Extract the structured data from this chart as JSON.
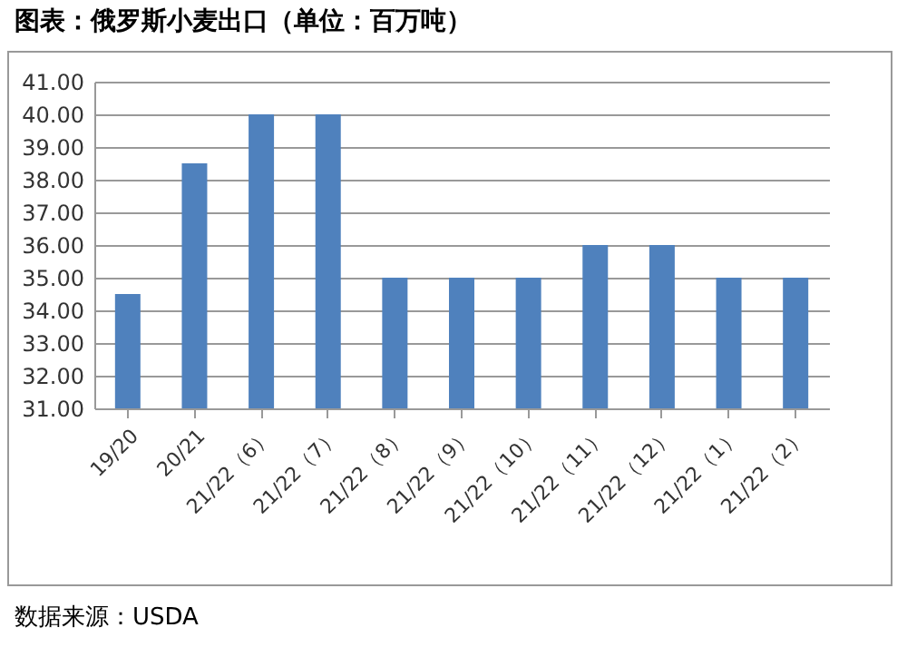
{
  "chart_data": {
    "type": "bar",
    "title": "图表：俄罗斯小麦出口（单位：百万吨）",
    "categories": [
      "19/20",
      "20/21",
      "21/22（6）",
      "21/22（7）",
      "21/22（8）",
      "21/22（9）",
      "21/22（10）",
      "21/22（11）",
      "21/22（12）",
      "21/22（1）",
      "21/22（2）"
    ],
    "values": [
      34.5,
      38.5,
      40,
      40,
      35,
      35,
      35,
      36,
      36,
      35,
      35
    ],
    "color": "#4f81bd",
    "ylim": [
      31,
      41
    ],
    "yticks": [
      {
        "value": 31,
        "label": "31.00"
      },
      {
        "value": 32,
        "label": "32.00"
      },
      {
        "value": 33,
        "label": "33.00"
      },
      {
        "value": 34,
        "label": "34.00"
      },
      {
        "value": 35,
        "label": "35.00"
      },
      {
        "value": 36,
        "label": "36.00"
      },
      {
        "value": 37,
        "label": "37.00"
      },
      {
        "value": 38,
        "label": "38.00"
      },
      {
        "value": 39,
        "label": "39.00"
      },
      {
        "value": 40,
        "label": "40.00"
      },
      {
        "value": 41,
        "label": "41.00"
      }
    ],
    "grid": "y",
    "annotations": [
      "数据来源：USDA"
    ]
  }
}
